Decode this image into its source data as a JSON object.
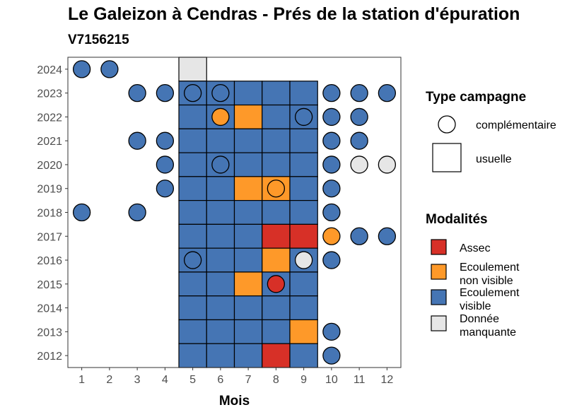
{
  "chart_data": {
    "type": "heatmap",
    "title": "Le Galeizon à Cendras - Prés de la station d'épuration",
    "subtitle": "V7156215",
    "xlabel": "Mois",
    "ylabel": "",
    "x_ticks": [
      "1",
      "2",
      "3",
      "4",
      "5",
      "6",
      "7",
      "8",
      "9",
      "10",
      "11",
      "12"
    ],
    "y_ticks": [
      "2012",
      "2013",
      "2014",
      "2015",
      "2016",
      "2017",
      "2018",
      "2019",
      "2020",
      "2021",
      "2022",
      "2023",
      "2024"
    ],
    "colors": {
      "assec": "#d73027",
      "non_visible": "#fe9929",
      "visible": "#4575b4",
      "manquante": "#e6e6e6"
    },
    "legend": {
      "type_title": "Type campagne",
      "type_items": [
        {
          "shape": "circle",
          "label": "complémentaire"
        },
        {
          "shape": "square",
          "label": "usuelle"
        }
      ],
      "mod_title": "Modalités",
      "mod_items": [
        {
          "key": "assec",
          "lines": [
            "Assec"
          ]
        },
        {
          "key": "non_visible",
          "lines": [
            "Ecoulement",
            "non visible"
          ]
        },
        {
          "key": "visible",
          "lines": [
            "Ecoulement",
            "visible"
          ]
        },
        {
          "key": "manquante",
          "lines": [
            "Donnée",
            "manquante"
          ]
        }
      ]
    },
    "usuelle": [
      {
        "year": 2024,
        "month": 5,
        "mod": "manquante"
      },
      {
        "year": 2023,
        "month": 5,
        "mod": "visible"
      },
      {
        "year": 2023,
        "month": 6,
        "mod": "visible"
      },
      {
        "year": 2023,
        "month": 7,
        "mod": "visible"
      },
      {
        "year": 2023,
        "month": 8,
        "mod": "visible"
      },
      {
        "year": 2023,
        "month": 9,
        "mod": "visible"
      },
      {
        "year": 2022,
        "month": 5,
        "mod": "visible"
      },
      {
        "year": 2022,
        "month": 6,
        "mod": "visible"
      },
      {
        "year": 2022,
        "month": 7,
        "mod": "non_visible"
      },
      {
        "year": 2022,
        "month": 8,
        "mod": "visible"
      },
      {
        "year": 2022,
        "month": 9,
        "mod": "visible"
      },
      {
        "year": 2021,
        "month": 5,
        "mod": "visible"
      },
      {
        "year": 2021,
        "month": 6,
        "mod": "visible"
      },
      {
        "year": 2021,
        "month": 7,
        "mod": "visible"
      },
      {
        "year": 2021,
        "month": 8,
        "mod": "visible"
      },
      {
        "year": 2021,
        "month": 9,
        "mod": "visible"
      },
      {
        "year": 2020,
        "month": 5,
        "mod": "visible"
      },
      {
        "year": 2020,
        "month": 6,
        "mod": "visible"
      },
      {
        "year": 2020,
        "month": 7,
        "mod": "visible"
      },
      {
        "year": 2020,
        "month": 8,
        "mod": "visible"
      },
      {
        "year": 2020,
        "month": 9,
        "mod": "visible"
      },
      {
        "year": 2019,
        "month": 5,
        "mod": "visible"
      },
      {
        "year": 2019,
        "month": 6,
        "mod": "visible"
      },
      {
        "year": 2019,
        "month": 7,
        "mod": "non_visible"
      },
      {
        "year": 2019,
        "month": 8,
        "mod": "non_visible"
      },
      {
        "year": 2019,
        "month": 9,
        "mod": "visible"
      },
      {
        "year": 2018,
        "month": 5,
        "mod": "visible"
      },
      {
        "year": 2018,
        "month": 6,
        "mod": "visible"
      },
      {
        "year": 2018,
        "month": 7,
        "mod": "visible"
      },
      {
        "year": 2018,
        "month": 8,
        "mod": "visible"
      },
      {
        "year": 2018,
        "month": 9,
        "mod": "visible"
      },
      {
        "year": 2017,
        "month": 5,
        "mod": "visible"
      },
      {
        "year": 2017,
        "month": 6,
        "mod": "visible"
      },
      {
        "year": 2017,
        "month": 7,
        "mod": "visible"
      },
      {
        "year": 2017,
        "month": 8,
        "mod": "assec"
      },
      {
        "year": 2017,
        "month": 9,
        "mod": "assec"
      },
      {
        "year": 2016,
        "month": 5,
        "mod": "visible"
      },
      {
        "year": 2016,
        "month": 6,
        "mod": "visible"
      },
      {
        "year": 2016,
        "month": 7,
        "mod": "visible"
      },
      {
        "year": 2016,
        "month": 8,
        "mod": "non_visible"
      },
      {
        "year": 2016,
        "month": 9,
        "mod": "visible"
      },
      {
        "year": 2015,
        "month": 5,
        "mod": "visible"
      },
      {
        "year": 2015,
        "month": 6,
        "mod": "visible"
      },
      {
        "year": 2015,
        "month": 7,
        "mod": "non_visible"
      },
      {
        "year": 2015,
        "month": 8,
        "mod": "visible"
      },
      {
        "year": 2015,
        "month": 9,
        "mod": "visible"
      },
      {
        "year": 2014,
        "month": 5,
        "mod": "visible"
      },
      {
        "year": 2014,
        "month": 6,
        "mod": "visible"
      },
      {
        "year": 2014,
        "month": 7,
        "mod": "visible"
      },
      {
        "year": 2014,
        "month": 8,
        "mod": "visible"
      },
      {
        "year": 2014,
        "month": 9,
        "mod": "visible"
      },
      {
        "year": 2013,
        "month": 5,
        "mod": "visible"
      },
      {
        "year": 2013,
        "month": 6,
        "mod": "visible"
      },
      {
        "year": 2013,
        "month": 7,
        "mod": "visible"
      },
      {
        "year": 2013,
        "month": 8,
        "mod": "visible"
      },
      {
        "year": 2013,
        "month": 9,
        "mod": "non_visible"
      },
      {
        "year": 2012,
        "month": 5,
        "mod": "visible"
      },
      {
        "year": 2012,
        "month": 6,
        "mod": "visible"
      },
      {
        "year": 2012,
        "month": 7,
        "mod": "visible"
      },
      {
        "year": 2012,
        "month": 8,
        "mod": "assec"
      },
      {
        "year": 2012,
        "month": 9,
        "mod": "visible"
      }
    ],
    "complementaire": [
      {
        "year": 2024,
        "month": 1,
        "mod": "visible"
      },
      {
        "year": 2024,
        "month": 2,
        "mod": "visible"
      },
      {
        "year": 2023,
        "month": 3,
        "mod": "visible"
      },
      {
        "year": 2023,
        "month": 4,
        "mod": "visible"
      },
      {
        "year": 2023,
        "month": 5,
        "mod": "visible"
      },
      {
        "year": 2023,
        "month": 6,
        "mod": "visible"
      },
      {
        "year": 2023,
        "month": 10,
        "mod": "visible"
      },
      {
        "year": 2023,
        "month": 11,
        "mod": "visible"
      },
      {
        "year": 2023,
        "month": 12,
        "mod": "visible"
      },
      {
        "year": 2022,
        "month": 6,
        "mod": "non_visible"
      },
      {
        "year": 2022,
        "month": 9,
        "mod": "visible"
      },
      {
        "year": 2022,
        "month": 10,
        "mod": "visible"
      },
      {
        "year": 2022,
        "month": 11,
        "mod": "visible"
      },
      {
        "year": 2021,
        "month": 3,
        "mod": "visible"
      },
      {
        "year": 2021,
        "month": 4,
        "mod": "visible"
      },
      {
        "year": 2021,
        "month": 10,
        "mod": "visible"
      },
      {
        "year": 2021,
        "month": 11,
        "mod": "visible"
      },
      {
        "year": 2020,
        "month": 4,
        "mod": "visible"
      },
      {
        "year": 2020,
        "month": 6,
        "mod": "visible"
      },
      {
        "year": 2020,
        "month": 10,
        "mod": "visible"
      },
      {
        "year": 2020,
        "month": 11,
        "mod": "manquante"
      },
      {
        "year": 2020,
        "month": 12,
        "mod": "manquante"
      },
      {
        "year": 2019,
        "month": 4,
        "mod": "visible"
      },
      {
        "year": 2019,
        "month": 8,
        "mod": "non_visible"
      },
      {
        "year": 2019,
        "month": 10,
        "mod": "visible"
      },
      {
        "year": 2018,
        "month": 1,
        "mod": "visible"
      },
      {
        "year": 2018,
        "month": 3,
        "mod": "visible"
      },
      {
        "year": 2018,
        "month": 10,
        "mod": "visible"
      },
      {
        "year": 2017,
        "month": 10,
        "mod": "non_visible"
      },
      {
        "year": 2017,
        "month": 11,
        "mod": "visible"
      },
      {
        "year": 2017,
        "month": 12,
        "mod": "visible"
      },
      {
        "year": 2016,
        "month": 5,
        "mod": "visible"
      },
      {
        "year": 2016,
        "month": 9,
        "mod": "manquante"
      },
      {
        "year": 2016,
        "month": 10,
        "mod": "visible"
      },
      {
        "year": 2015,
        "month": 8,
        "mod": "assec"
      },
      {
        "year": 2013,
        "month": 10,
        "mod": "visible"
      },
      {
        "year": 2012,
        "month": 10,
        "mod": "visible"
      }
    ]
  }
}
